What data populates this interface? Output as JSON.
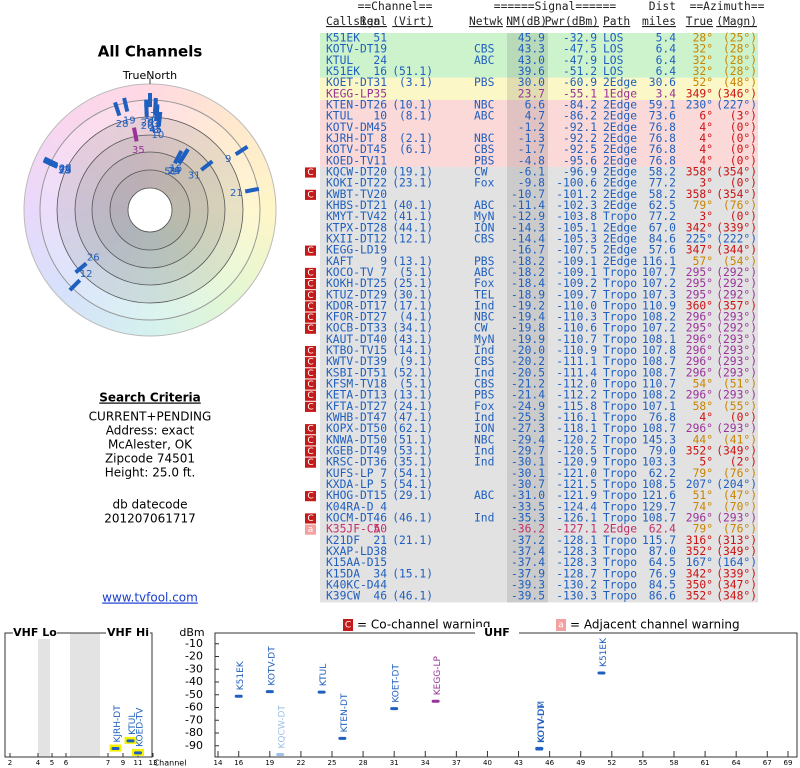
{
  "polar": {
    "title": "All Channels",
    "north_label": "TrueNorth"
  },
  "criteria": {
    "heading": "Search Criteria",
    "lines": [
      "CURRENT+PENDING",
      "Address: exact",
      "McAlester, OK",
      "Zipcode 74501",
      "Height: 25.0 ft."
    ],
    "datecode_label": "db datecode",
    "datecode": "201207061717",
    "link": "www.tvfool.com"
  },
  "table": {
    "header1": [
      "==Channel==",
      "======Signal======",
      "Dist",
      "==Azimuth=="
    ],
    "header2": [
      "Callsign",
      "Real",
      "(Virt)",
      "Netwk",
      "NM(dB)",
      "Pwr(dBm)",
      "Path",
      "miles",
      "True",
      "(Magn)"
    ],
    "text_color": "#1f5fbf",
    "rows": [
      {
        "c": [
          "K51EK",
          "51",
          null,
          null,
          "45.9",
          "-32.9",
          "LOS",
          "5.4",
          "28°",
          "(25°)"
        ],
        "bg": "#cdf3cd",
        "az": "#c88400"
      },
      {
        "c": [
          "KOTV-DT",
          "19",
          null,
          "CBS",
          "43.3",
          "-47.5",
          "LOS",
          "6.4",
          "32°",
          "(28°)"
        ],
        "bg": "#cdf3cd",
        "az": "#c88400"
      },
      {
        "c": [
          "KTUL",
          "24",
          null,
          "ABC",
          "43.0",
          "-47.9",
          "LOS",
          "6.4",
          "32°",
          "(28°)"
        ],
        "bg": "#cdf3cd",
        "az": "#c88400"
      },
      {
        "c": [
          "K51EK",
          "16",
          "(51.1)",
          null,
          "39.6",
          "-51.2",
          "LOS",
          "6.4",
          "32°",
          "(28°)"
        ],
        "bg": "#cdf3cd",
        "az": "#c88400"
      },
      {
        "c": [
          "KOET-DT",
          "31",
          "(3.1)",
          "PBS",
          "30.0",
          "-60.9",
          "2Edge",
          "30.6",
          "52°",
          "(48°)"
        ],
        "bg": "#fbf7c6",
        "az": "#c88400"
      },
      {
        "c": [
          "KEGG-LP",
          "35",
          null,
          null,
          "23.7",
          "-55.1",
          "1Edge",
          "3.4",
          "349°",
          "(346°)"
        ],
        "bg": "#fbf7c6",
        "az": "#cc1111",
        "color": "#993399"
      },
      {
        "c": [
          "KTEN-DT",
          "26",
          "(10.1)",
          "NBC",
          "6.6",
          "-84.2",
          "2Edge",
          "59.1",
          "230°",
          "(227°)"
        ],
        "bg": "#fbd9d9",
        "az": "#1f5fbf"
      },
      {
        "c": [
          "KTUL",
          "10",
          "(8.1)",
          "ABC",
          "4.7",
          "-86.2",
          "2Edge",
          "73.6",
          "6°",
          "(3°)"
        ],
        "bg": "#fbd9d9",
        "az": "#cc1111"
      },
      {
        "c": [
          "KOTV-DM",
          "45",
          null,
          null,
          "-1.2",
          "-92.1",
          "2Edge",
          "76.8",
          "4°",
          "(0°)"
        ],
        "bg": "#fbd9d9",
        "az": "#cc1111"
      },
      {
        "c": [
          "KJRH-DT",
          "8",
          "(2.1)",
          "NBC",
          "-1.3",
          "-92.2",
          "2Edge",
          "76.8",
          "4°",
          "(0°)"
        ],
        "bg": "#fbd9d9",
        "az": "#cc1111"
      },
      {
        "c": [
          "KOTV-DT",
          "45",
          "(6.1)",
          "CBS",
          "-1.7",
          "-92.5",
          "2Edge",
          "76.8",
          "4°",
          "(0°)"
        ],
        "bg": "#fbd9d9",
        "az": "#cc1111"
      },
      {
        "c": [
          "KOED-TV",
          "11",
          null,
          "PBS",
          "-4.8",
          "-95.6",
          "2Edge",
          "76.8",
          "4°",
          "(0°)"
        ],
        "bg": "#fbd9d9",
        "az": "#cc1111"
      },
      {
        "c": [
          "KQCW-DT",
          "20",
          "(19.1)",
          "CW",
          "-6.1",
          "-96.9",
          "2Edge",
          "58.2",
          "358°",
          "(354°)"
        ],
        "bg": "#e2e2e2",
        "az": "#cc1111",
        "w": "C"
      },
      {
        "c": [
          "KOKI-DT",
          "22",
          "(23.1)",
          "Fox",
          "-9.8",
          "-100.6",
          "2Edge",
          "77.2",
          "3°",
          "(0°)"
        ],
        "bg": "#e2e2e2",
        "az": "#cc1111"
      },
      {
        "c": [
          "KWBT-TV",
          "20",
          null,
          null,
          "-10.7",
          "-101.2",
          "2Edge",
          "58.2",
          "358°",
          "(354°)"
        ],
        "bg": "#e2e2e2",
        "az": "#cc1111",
        "w": "C"
      },
      {
        "c": [
          "KHBS-DT",
          "21",
          "(40.1)",
          "ABC",
          "-11.4",
          "-102.3",
          "2Edge",
          "62.5",
          "79°",
          "(76°)"
        ],
        "bg": "#e2e2e2",
        "az": "#c88400"
      },
      {
        "c": [
          "KMYT-TV",
          "42",
          "(41.1)",
          "MyN",
          "-12.9",
          "-103.8",
          "Tropo",
          "77.2",
          "3°",
          "(0°)"
        ],
        "bg": "#e2e2e2",
        "az": "#cc1111"
      },
      {
        "c": [
          "KTPX-DT",
          "28",
          "(44.1)",
          "ION",
          "-14.3",
          "-105.1",
          "2Edge",
          "67.0",
          "342°",
          "(339°)"
        ],
        "bg": "#e2e2e2",
        "az": "#cc1111"
      },
      {
        "c": [
          "KXII-DT",
          "12",
          "(12.1)",
          "CBS",
          "-14.4",
          "-105.3",
          "2Edge",
          "84.6",
          "225°",
          "(222°)"
        ],
        "bg": "#e2e2e2",
        "az": "#1f5fbf"
      },
      {
        "c": [
          "KEGG-LD",
          "19",
          null,
          null,
          "-16.7",
          "-107.5",
          "2Edge",
          "57.6",
          "347°",
          "(344°)"
        ],
        "bg": "#e2e2e2",
        "az": "#cc1111",
        "w": "C"
      },
      {
        "c": [
          "KAFT",
          "9",
          "(13.1)",
          "PBS",
          "-18.2",
          "-109.1",
          "2Edge",
          "116.1",
          "57°",
          "(54°)"
        ],
        "bg": "#e2e2e2",
        "az": "#c88400"
      },
      {
        "c": [
          "KOCO-TV",
          "7",
          "(5.1)",
          "ABC",
          "-18.2",
          "-109.1",
          "Tropo",
          "107.7",
          "295°",
          "(292°)"
        ],
        "bg": "#e2e2e2",
        "az": "#993399",
        "w": "C"
      },
      {
        "c": [
          "KOKH-DT",
          "25",
          "(25.1)",
          "Fox",
          "-18.4",
          "-109.2",
          "Tropo",
          "107.2",
          "295°",
          "(292°)"
        ],
        "bg": "#e2e2e2",
        "az": "#993399",
        "w": "C"
      },
      {
        "c": [
          "KTUZ-DT",
          "29",
          "(30.1)",
          "TEL",
          "-18.9",
          "-109.7",
          "Tropo",
          "107.3",
          "295°",
          "(292°)"
        ],
        "bg": "#e2e2e2",
        "az": "#993399",
        "w": "C"
      },
      {
        "c": [
          "KDOR-DT",
          "17",
          "(17.1)",
          "Ind",
          "-19.2",
          "-110.0",
          "Tropo",
          "110.9",
          "360°",
          "(357°)"
        ],
        "bg": "#e2e2e2",
        "az": "#cc1111",
        "w": "C"
      },
      {
        "c": [
          "KFOR-DT",
          "27",
          "(4.1)",
          "NBC",
          "-19.4",
          "-110.3",
          "Tropo",
          "108.2",
          "296°",
          "(293°)"
        ],
        "bg": "#e2e2e2",
        "az": "#993399",
        "w": "C"
      },
      {
        "c": [
          "KOCB-DT",
          "33",
          "(34.1)",
          "CW",
          "-19.8",
          "-110.6",
          "Tropo",
          "107.2",
          "295°",
          "(292°)"
        ],
        "bg": "#e2e2e2",
        "az": "#993399",
        "w": "C"
      },
      {
        "c": [
          "KAUT-DT",
          "40",
          "(43.1)",
          "MyN",
          "-19.9",
          "-110.7",
          "Tropo",
          "108.1",
          "296°",
          "(293°)"
        ],
        "bg": "#e2e2e2",
        "az": "#993399"
      },
      {
        "c": [
          "KTBO-TV",
          "15",
          "(14.1)",
          "Ind",
          "-20.0",
          "-110.9",
          "Tropo",
          "107.8",
          "296°",
          "(293°)"
        ],
        "bg": "#e2e2e2",
        "az": "#993399",
        "w": "C"
      },
      {
        "c": [
          "KWTV-DT",
          "39",
          "(9.1)",
          "CBS",
          "-20.2",
          "-111.1",
          "Tropo",
          "108.7",
          "296°",
          "(293°)"
        ],
        "bg": "#e2e2e2",
        "az": "#993399",
        "w": "C"
      },
      {
        "c": [
          "KSBI-DT",
          "51",
          "(52.1)",
          "Ind",
          "-20.5",
          "-111.4",
          "Tropo",
          "108.7",
          "296°",
          "(293°)"
        ],
        "bg": "#e2e2e2",
        "az": "#993399",
        "w": "C"
      },
      {
        "c": [
          "KFSM-TV",
          "18",
          "(5.1)",
          "CBS",
          "-21.2",
          "-112.0",
          "Tropo",
          "110.7",
          "54°",
          "(51°)"
        ],
        "bg": "#e2e2e2",
        "az": "#c88400",
        "w": "C"
      },
      {
        "c": [
          "KETA-DT",
          "13",
          "(13.1)",
          "PBS",
          "-21.4",
          "-112.2",
          "Tropo",
          "108.2",
          "296°",
          "(293°)"
        ],
        "bg": "#e2e2e2",
        "az": "#993399",
        "w": "C"
      },
      {
        "c": [
          "KFTA-DT",
          "27",
          "(24.1)",
          "Fox",
          "-24.9",
          "-115.8",
          "Tropo",
          "107.1",
          "58°",
          "(55°)"
        ],
        "bg": "#e2e2e2",
        "az": "#c88400",
        "w": "C"
      },
      {
        "c": [
          "KWHB-DT",
          "47",
          "(47.1)",
          "Ind",
          "-25.3",
          "-116.1",
          "Tropo",
          "76.8",
          "4°",
          "(0°)"
        ],
        "bg": "#e2e2e2",
        "az": "#cc1111"
      },
      {
        "c": [
          "KOPX-DT",
          "50",
          "(62.1)",
          "ION",
          "-27.3",
          "-118.1",
          "Tropo",
          "108.7",
          "296°",
          "(293°)"
        ],
        "bg": "#e2e2e2",
        "az": "#993399",
        "w": "C"
      },
      {
        "c": [
          "KNWA-DT",
          "50",
          "(51.1)",
          "NBC",
          "-29.4",
          "-120.2",
          "Tropo",
          "145.3",
          "44°",
          "(41°)"
        ],
        "bg": "#e2e2e2",
        "az": "#c88400",
        "w": "C"
      },
      {
        "c": [
          "KGEB-DT",
          "49",
          "(53.1)",
          "Ind",
          "-29.7",
          "-120.5",
          "Tropo",
          "79.0",
          "352°",
          "(349°)"
        ],
        "bg": "#e2e2e2",
        "az": "#cc1111",
        "w": "C"
      },
      {
        "c": [
          "KRSC-DT",
          "36",
          "(35.1)",
          "Ind",
          "-30.1",
          "-120.9",
          "Tropo",
          "103.3",
          "5°",
          "(2°)"
        ],
        "bg": "#e2e2e2",
        "az": "#cc1111",
        "w": "C"
      },
      {
        "c": [
          "KUFS-LP",
          "7",
          "(54.1)",
          null,
          "-30.1",
          "-121.0",
          "Tropo",
          "62.2",
          "79°",
          "(76°)"
        ],
        "bg": "#e2e2e2",
        "az": "#c88400"
      },
      {
        "c": [
          "KXDA-LP",
          "5",
          "(54.1)",
          null,
          "-30.7",
          "-121.5",
          "Tropo",
          "108.5",
          "207°",
          "(204°)"
        ],
        "bg": "#e2e2e2",
        "az": "#1f5fbf"
      },
      {
        "c": [
          "KHOG-DT",
          "15",
          "(29.1)",
          "ABC",
          "-31.0",
          "-121.9",
          "Tropo",
          "121.6",
          "51°",
          "(47°)"
        ],
        "bg": "#e2e2e2",
        "az": "#c88400",
        "w": "C"
      },
      {
        "c": [
          "K04RA-D",
          "4",
          null,
          null,
          "-33.5",
          "-124.4",
          "Tropo",
          "129.7",
          "74°",
          "(70°)"
        ],
        "bg": "#e2e2e2",
        "az": "#c88400"
      },
      {
        "c": [
          "KOCM-DT",
          "46",
          "(46.1)",
          "Ind",
          "-35.3",
          "-126.1",
          "Tropo",
          "108.7",
          "296°",
          "(293°)"
        ],
        "bg": "#e2e2e2",
        "az": "#993399",
        "w": "C"
      },
      {
        "c": [
          "K35JF-CA",
          "50",
          null,
          null,
          "-36.2",
          "-127.1",
          "2Edge",
          "62.4",
          "79°",
          "(76°)"
        ],
        "bg": "#e2e2e2",
        "az": "#c88400",
        "w": "a",
        "color": "#c0306a"
      },
      {
        "c": [
          "K21DF",
          "21",
          "(21.1)",
          null,
          "-37.2",
          "-128.1",
          "Tropo",
          "115.7",
          "316°",
          "(313°)"
        ],
        "bg": "#e2e2e2",
        "az": "#cc1111"
      },
      {
        "c": [
          "KXAP-LD",
          "38",
          null,
          null,
          "-37.4",
          "-128.3",
          "Tropo",
          "87.0",
          "352°",
          "(349°)"
        ],
        "bg": "#e2e2e2",
        "az": "#cc1111"
      },
      {
        "c": [
          "K15AA-D",
          "15",
          null,
          null,
          "-37.4",
          "-128.3",
          "Tropo",
          "64.5",
          "167°",
          "(164°)"
        ],
        "bg": "#e2e2e2",
        "az": "#1f5fbf"
      },
      {
        "c": [
          "K15DA",
          "34",
          "(15.1)",
          null,
          "-37.9",
          "-128.7",
          "Tropo",
          "76.9",
          "342°",
          "(339°)"
        ],
        "bg": "#e2e2e2",
        "az": "#cc1111"
      },
      {
        "c": [
          "K40KC-D",
          "44",
          null,
          null,
          "-39.3",
          "-130.2",
          "Tropo",
          "84.5",
          "350°",
          "(347°)"
        ],
        "bg": "#e2e2e2",
        "az": "#cc1111"
      },
      {
        "c": [
          "K39CW",
          "46",
          "(46.1)",
          null,
          "-39.5",
          "-130.3",
          "Tropo",
          "86.6",
          "352°",
          "(348°)"
        ],
        "bg": "#e2e2e2",
        "az": "#cc1111"
      }
    ]
  },
  "legend": [
    {
      "icon": "C",
      "text": "= Co-channel warning",
      "color": "#c41a1a"
    },
    {
      "icon": "a",
      "text": "= Adjacent channel warning",
      "color": "#f2a0a0"
    }
  ],
  "spectrum": {
    "vhf_lo": "VHF Lo",
    "vhf_hi": "VHF Hi",
    "uhf": "UHF",
    "y_label": "dBm",
    "x_label": "Channel",
    "ylim": [
      0,
      -100
    ],
    "yticks": [
      -10,
      -20,
      -30,
      -40,
      -50,
      -60,
      -70,
      -80,
      -90
    ],
    "vhf_ticks": [
      2,
      4,
      5,
      6,
      7,
      9,
      11,
      13
    ],
    "uhf_ticks": [
      14,
      16,
      19,
      22,
      25,
      28,
      31,
      34,
      37,
      40,
      43,
      46,
      49,
      52,
      55,
      58,
      61,
      64,
      67,
      69
    ]
  }
}
